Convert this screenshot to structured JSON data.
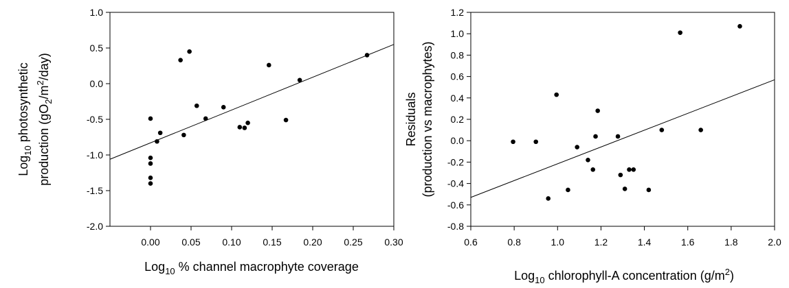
{
  "chart_data": [
    {
      "type": "scatter",
      "title": "",
      "xlabel": {
        "base": "Log",
        "sub": "10",
        "rest": " % channel macrophyte coverage"
      },
      "ylabel": {
        "line1": {
          "base": "Log",
          "sub": "10",
          "rest": " photosynthetic"
        },
        "line2": {
          "pre": "production (gO",
          "sub": "2",
          "mid": "/m",
          "sup": "2",
          "post": "/day)"
        }
      },
      "xlim": [
        -0.05,
        0.3
      ],
      "ylim": [
        -2.0,
        1.0
      ],
      "xticks": [
        "0.00",
        "0.05",
        "0.10",
        "0.15",
        "0.20",
        "0.25",
        "0.30"
      ],
      "xtick_values": [
        0.0,
        0.05,
        0.1,
        0.15,
        0.2,
        0.25,
        0.3
      ],
      "yticks": [
        "-2.0",
        "-1.5",
        "-1.0",
        "-0.5",
        "0.0",
        "0.5",
        "1.0"
      ],
      "ytick_values": [
        -2.0,
        -1.5,
        -1.0,
        -0.5,
        0.0,
        0.5,
        1.0
      ],
      "points": [
        [
          0.0,
          -0.49
        ],
        [
          0.0,
          -1.04
        ],
        [
          0.0,
          -1.12
        ],
        [
          0.0,
          -1.32
        ],
        [
          0.0,
          -1.4
        ],
        [
          0.008,
          -0.81
        ],
        [
          0.012,
          -0.69
        ],
        [
          0.037,
          0.33
        ],
        [
          0.041,
          -0.72
        ],
        [
          0.048,
          0.45
        ],
        [
          0.057,
          -0.31
        ],
        [
          0.068,
          -0.49
        ],
        [
          0.09,
          -0.33
        ],
        [
          0.11,
          -0.61
        ],
        [
          0.116,
          -0.62
        ],
        [
          0.12,
          -0.55
        ],
        [
          0.146,
          0.26
        ],
        [
          0.167,
          -0.51
        ],
        [
          0.184,
          0.05
        ],
        [
          0.267,
          0.4
        ]
      ],
      "fit_line": [
        [
          -0.05,
          -1.06
        ],
        [
          0.3,
          0.55
        ]
      ]
    },
    {
      "type": "scatter",
      "title": "",
      "xlabel": {
        "pre": "Log",
        "sub": "10",
        "mid": " chlorophyll-A concentration (g/m",
        "sup": "2",
        "post": ")"
      },
      "ylabel": {
        "line1": "Residuals",
        "line2": "(production vs macrophytes)"
      },
      "xlim": [
        0.6,
        2.0
      ],
      "ylim": [
        -0.8,
        1.2
      ],
      "xticks": [
        "0.6",
        "0.8",
        "1.0",
        "1.2",
        "1.4",
        "1.6",
        "1.8",
        "2.0"
      ],
      "xtick_values": [
        0.6,
        0.8,
        1.0,
        1.2,
        1.4,
        1.6,
        1.8,
        2.0
      ],
      "yticks": [
        "-0.8",
        "-0.6",
        "-0.4",
        "-0.2",
        "0.0",
        "0.2",
        "0.4",
        "0.6",
        "0.8",
        "1.0",
        "1.2"
      ],
      "ytick_values": [
        -0.8,
        -0.6,
        -0.4,
        -0.2,
        0.0,
        0.2,
        0.4,
        0.6,
        0.8,
        1.0,
        1.2
      ],
      "points": [
        [
          0.795,
          -0.01
        ],
        [
          0.9,
          -0.01
        ],
        [
          0.957,
          -0.54
        ],
        [
          0.995,
          0.43
        ],
        [
          1.048,
          -0.46
        ],
        [
          1.09,
          -0.06
        ],
        [
          1.14,
          -0.18
        ],
        [
          1.163,
          -0.27
        ],
        [
          1.175,
          0.04
        ],
        [
          1.185,
          0.28
        ],
        [
          1.278,
          0.04
        ],
        [
          1.29,
          -0.32
        ],
        [
          1.31,
          -0.45
        ],
        [
          1.33,
          -0.27
        ],
        [
          1.35,
          -0.27
        ],
        [
          1.42,
          -0.46
        ],
        [
          1.48,
          0.1
        ],
        [
          1.565,
          1.01
        ],
        [
          1.66,
          0.1
        ],
        [
          1.84,
          1.07
        ]
      ],
      "fit_line": [
        [
          0.6,
          -0.53
        ],
        [
          2.0,
          0.57
        ]
      ]
    }
  ]
}
